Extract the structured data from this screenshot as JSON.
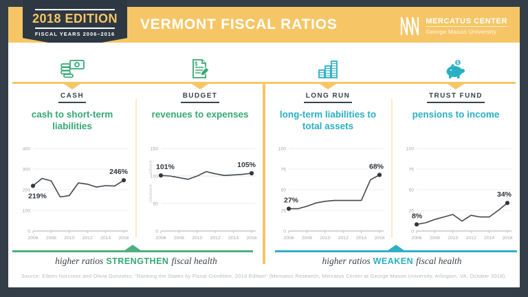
{
  "header": {
    "badge": {
      "title": "2018 EDITION",
      "subtitle": "FISCAL YEARS 2006–2016"
    },
    "title": "VERMONT FISCAL RATIOS",
    "logo": {
      "org": "MERCATUS CENTER",
      "university": "George Mason University"
    }
  },
  "colors": {
    "navy": "#333E48",
    "badge_navy": "#2E3842",
    "yellow": "#F6C666",
    "pale_yellow": "#FBE8C4",
    "green": "#35A873",
    "green_line": "#4DAF7F",
    "teal": "#29AFC4",
    "teal_line": "#2FB0C5",
    "chart_line": "#41464C"
  },
  "panels": [
    {
      "category": "CASH",
      "title": "cash to short-term liabilities",
      "icon": "money-icon",
      "theme": "green"
    },
    {
      "category": "BUDGET",
      "title": "revenues to expenses",
      "icon": "budget-document-icon",
      "theme": "green"
    },
    {
      "category": "LONG RUN",
      "title": "long-term liabilities to total assets",
      "icon": "asset-stacks-icon",
      "theme": "teal"
    },
    {
      "category": "TRUST FUND",
      "title": "pensions to income",
      "icon": "piggy-bank-icon",
      "theme": "teal"
    }
  ],
  "chart_data": [
    {
      "type": "line",
      "title": "cash to short-term liabilities",
      "unit": "percent",
      "categories": [
        2006,
        2007,
        2008,
        2009,
        2010,
        2011,
        2012,
        2013,
        2014,
        2015,
        2016
      ],
      "values": [
        219,
        255,
        243,
        165,
        172,
        233,
        227,
        213,
        220,
        218,
        246
      ],
      "ylim": [
        0,
        400
      ],
      "yticks": [
        0,
        100,
        200,
        300,
        400
      ],
      "x_ticks": [
        2006,
        2008,
        2010,
        2012,
        2014,
        2016
      ],
      "start_label": "219%",
      "end_label": "246%",
      "start_label_below": true,
      "grid": true,
      "legend": false
    },
    {
      "type": "line",
      "title": "revenues to expenses",
      "unit": "percent",
      "categories": [
        2006,
        2007,
        2008,
        2009,
        2010,
        2011,
        2012,
        2013,
        2014,
        2015,
        2016
      ],
      "values": [
        101,
        100,
        97,
        94,
        100,
        108,
        104,
        101,
        102,
        103,
        105
      ],
      "ylim": [
        0,
        150
      ],
      "yticks": [
        0,
        50,
        100,
        150
      ],
      "x_ticks": [
        2006,
        2008,
        2010,
        2012,
        2014,
        2016
      ],
      "start_label": "101%",
      "end_label": "105%",
      "reference_line": 100,
      "axis_side_labels": [
        {
          "text": "solvent",
          "x": 13,
          "y": 50
        },
        {
          "text": "insolvent",
          "x": 13,
          "y": 90
        }
      ],
      "grid": true,
      "legend": false
    },
    {
      "type": "line",
      "title": "long-term liabilities to total assets",
      "unit": "percent",
      "categories": [
        2006,
        2007,
        2008,
        2009,
        2010,
        2011,
        2012,
        2013,
        2014,
        2015,
        2016
      ],
      "values": [
        27,
        27,
        30,
        34,
        36,
        37,
        37,
        37,
        37,
        62,
        68
      ],
      "ylim": [
        0,
        100
      ],
      "yticks": [
        0,
        25,
        50,
        75,
        100
      ],
      "x_ticks": [
        2006,
        2008,
        2010,
        2012,
        2014,
        2016
      ],
      "start_label": "27%",
      "end_label": "68%",
      "grid": true,
      "legend": false
    },
    {
      "type": "line",
      "title": "pensions to income",
      "unit": "percent",
      "categories": [
        2006,
        2007,
        2008,
        2009,
        2010,
        2011,
        2012,
        2013,
        2014,
        2015,
        2016
      ],
      "values": [
        8,
        10,
        14,
        17,
        20,
        12,
        19,
        17,
        17,
        25,
        34
      ],
      "ylim": [
        0,
        100
      ],
      "yticks": [
        0,
        25,
        50,
        75,
        100
      ],
      "x_ticks": [
        2006,
        2008,
        2010,
        2012,
        2014,
        2016
      ],
      "start_label": "8%",
      "end_label": "34%",
      "grid": true,
      "legend": false
    }
  ],
  "footers": [
    {
      "pre": "higher ratios",
      "keyword": "STRENGTHEN",
      "post": "fiscal health",
      "theme": "green"
    },
    {
      "pre": "higher ratios",
      "keyword": "WEAKEN",
      "post": "fiscal health",
      "theme": "teal"
    }
  ],
  "source": "Source: Eileen Norcross and Olivia Gonzalez, “Ranking the States by Fiscal Condition, 2018 Edition” (Mercatus Research, Mercatus Center at George Mason University, Arlington, VA, October 2018)."
}
